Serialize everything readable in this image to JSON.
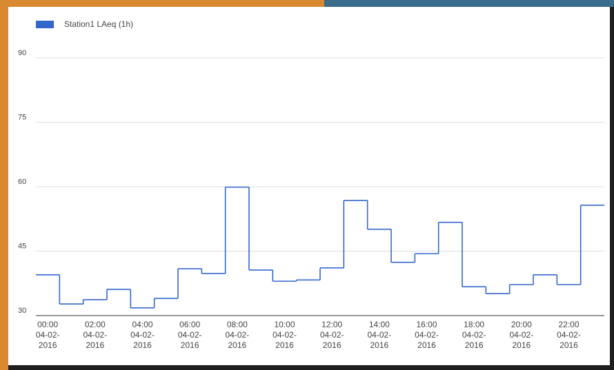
{
  "chart_data": {
    "type": "step-line",
    "series": [
      {
        "name": "Station1 LAeq (1h)",
        "color": "#3366cc",
        "values": [
          39.5,
          32.7,
          33.7,
          36.1,
          31.8,
          34.0,
          40.9,
          39.8,
          59.9,
          40.6,
          38.0,
          38.3,
          41.1,
          56.8,
          50.1,
          42.4,
          44.4,
          51.7,
          36.7,
          35.1,
          37.2,
          39.5,
          37.2,
          55.7
        ]
      }
    ],
    "categories": [
      "00:00 04-02-2016",
      null,
      "02:00 04-02-2016",
      null,
      "04:00 04-02-2016",
      null,
      "06:00 04-02-2016",
      null,
      "08:00 04-02-2016",
      null,
      "10:00 04-02-2016",
      null,
      "12:00 04-02-2016",
      null,
      "14:00 04-02-2016",
      null,
      "16:00 04-02-2016",
      null,
      "18:00 04-02-2016",
      null,
      "20:00 04-02-2016",
      null,
      "22:00 04-02-2016",
      null
    ],
    "ylim": [
      30,
      90
    ],
    "yticks": [
      30,
      45,
      60,
      75,
      90
    ],
    "grid": true,
    "legend": "top-left"
  }
}
